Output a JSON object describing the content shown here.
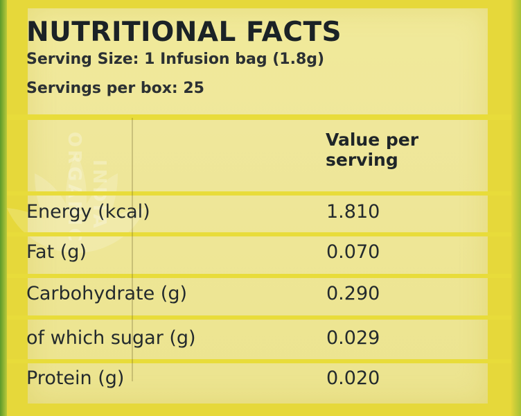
{
  "panel": {
    "title": "NUTRITIONAL FACTS",
    "serving_size": "Serving Size: 1 Infusion bag (1.8g)",
    "servings_per_box": "Servings per box: 25"
  },
  "table": {
    "column_header_line1": "Value per",
    "column_header_line2": "serving",
    "rows": [
      {
        "label": "Energy (kcal)",
        "value": "1.810"
      },
      {
        "label": "Fat (g)",
        "value": "0.070"
      },
      {
        "label": "Carbohydrate (g)",
        "value": "0.290"
      },
      {
        "label": "of which sugar (g)",
        "value": "0.029"
      },
      {
        "label": "Protein (g)",
        "value": "0.020"
      }
    ]
  },
  "watermark": {
    "line1": "ORGANIC",
    "line2": "INDIA"
  },
  "colors": {
    "background": "#e6d83a",
    "label": "#efe79b",
    "text": "#1f2528",
    "rule": "#e8dc3a"
  }
}
